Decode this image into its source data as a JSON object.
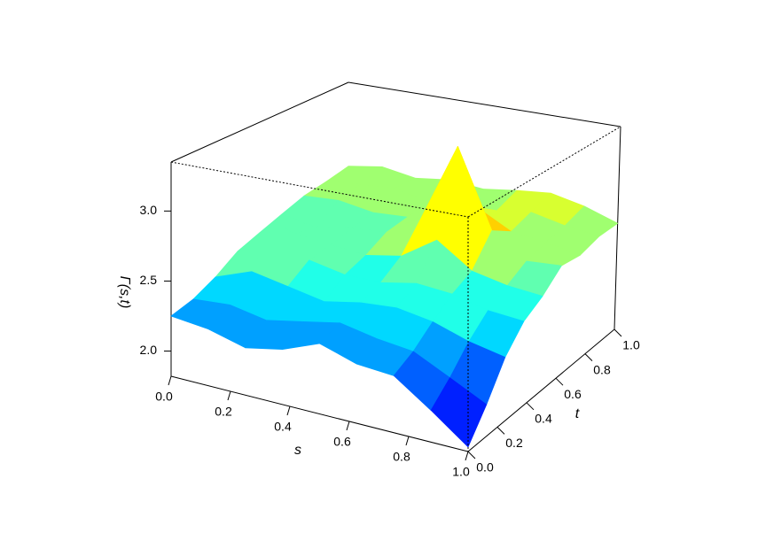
{
  "chart_data": {
    "type": "surface",
    "xlabel": "s",
    "ylabel": "t",
    "zlabel": "Γ(s,t)",
    "x": [
      0,
      0.125,
      0.25,
      0.375,
      0.5,
      0.625,
      0.75,
      0.875,
      1
    ],
    "y": [
      0,
      0.125,
      0.25,
      0.375,
      0.5,
      0.625,
      0.75,
      0.875,
      1
    ],
    "z": [
      [
        2.25,
        2.22,
        2.15,
        2.2,
        2.3,
        2.22,
        2.2,
        2.03,
        1.85
      ],
      [
        2.28,
        2.3,
        2.25,
        2.3,
        2.35,
        2.3,
        2.27,
        2.15,
        2.03
      ],
      [
        2.35,
        2.45,
        2.4,
        2.35,
        2.4,
        2.42,
        2.38,
        2.3,
        2.25
      ],
      [
        2.45,
        2.72,
        2.5,
        2.45,
        2.45,
        2.5,
        2.48,
        2.42,
        2.4
      ],
      [
        2.5,
        2.55,
        2.52,
        2.5,
        2.55,
        2.72,
        2.55,
        2.5,
        2.48
      ],
      [
        2.55,
        2.5,
        2.55,
        2.58,
        2.75,
        3.32,
        2.75,
        2.58,
        2.6
      ],
      [
        2.6,
        2.62,
        2.58,
        2.6,
        2.65,
        2.78,
        2.65,
        2.62,
        2.58
      ],
      [
        2.62,
        2.65,
        2.68,
        2.62,
        2.65,
        2.66,
        2.7,
        2.65,
        2.62
      ],
      [
        2.65,
        2.7,
        2.66,
        2.7,
        2.68,
        2.72,
        2.75,
        2.7,
        2.62
      ]
    ],
    "xlim": [
      0,
      1
    ],
    "ylim": [
      0,
      1
    ],
    "zlim": [
      1.82,
      3.35
    ],
    "xticks": [
      {
        "value": 0,
        "label": "0.0"
      },
      0.2,
      0.4,
      0.6,
      0.8,
      {
        "value": 1,
        "label": "1.0"
      }
    ],
    "yticks": [
      {
        "value": 0,
        "label": "0.0"
      },
      0.2,
      0.4,
      0.6,
      0.8,
      {
        "value": 1,
        "label": "1.0"
      }
    ],
    "zticks": [
      {
        "value": 2,
        "label": "2.0"
      },
      2.5,
      {
        "value": 3,
        "label": "3.0"
      }
    ],
    "palette": [
      "#00008f",
      "#0000d0",
      "#0020ff",
      "#0060ff",
      "#00a0ff",
      "#00d8ff",
      "#20ffe8",
      "#60ffb0",
      "#a0ff70",
      "#d8ff30",
      "#ffff00",
      "#ffd000",
      "#ff9000",
      "#ff5000",
      "#e00000",
      "#a00000"
    ]
  }
}
